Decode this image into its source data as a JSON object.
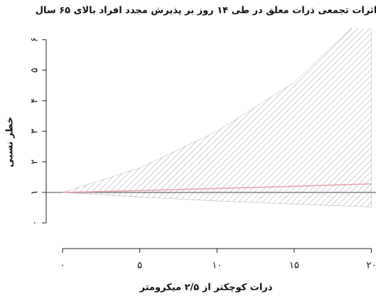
{
  "chart_data": {
    "type": "line",
    "title": "اثرات تجمعی ذرات معلق در طی ۱۴ روز بر پذیرش مجدد افراد بالای ۶۵ سال",
    "x_label": "ذرات کوچکتر از ۲/۵ میکرومتر",
    "y_label": "خطر نسبی",
    "x": [
      0,
      5,
      10,
      15,
      20
    ],
    "values": [
      1,
      1.06,
      1.13,
      1.2,
      1.28
    ],
    "upper": [
      1,
      1.8,
      3.0,
      4.6,
      7.0
    ],
    "lower": [
      1,
      0.85,
      0.72,
      0.62,
      0.52
    ],
    "color": "#e8a0a8",
    "band_color": "#b0b0b0",
    "hline": 1,
    "xlim": [
      -1.06,
      20.3
    ],
    "ylim": [
      -0.35,
      6.3
    ],
    "xticks": [
      {
        "value": 0,
        "label": "۰"
      },
      {
        "value": 5,
        "label": "۵"
      },
      {
        "value": 10,
        "label": "۱۰"
      },
      {
        "value": 15,
        "label": "۱۵"
      },
      {
        "value": 20,
        "label": "۲۰"
      }
    ],
    "yticks": [
      {
        "value": 0,
        "label": "۰"
      },
      {
        "value": 1,
        "label": "۱"
      },
      {
        "value": 2,
        "label": "۲"
      },
      {
        "value": 3,
        "label": "۳"
      },
      {
        "value": 4,
        "label": "۴"
      },
      {
        "value": 5,
        "label": "۵"
      },
      {
        "value": 6,
        "label": "۶"
      }
    ]
  }
}
